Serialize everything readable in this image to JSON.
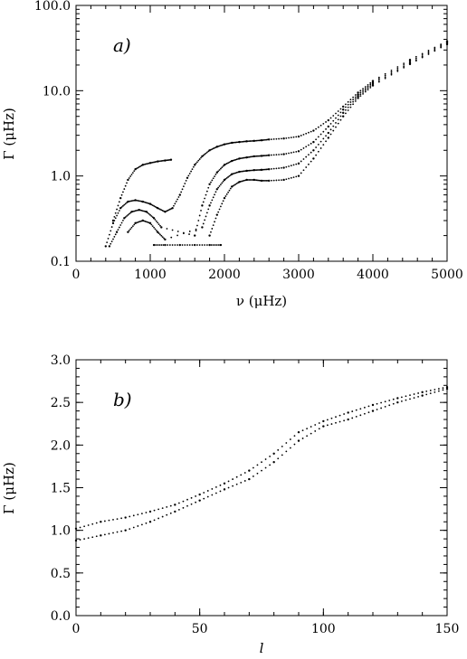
{
  "chart_data": [
    {
      "type": "scatter",
      "panel_label": "a)",
      "xlabel": "ν (μHz)",
      "ylabel": "Γ (μHz)",
      "xlim": [
        0,
        5000
      ],
      "ylim": [
        0.1,
        100
      ],
      "y_scale": "log",
      "x_ticks": [
        0,
        1000,
        2000,
        3000,
        4000,
        5000
      ],
      "x_tick_labels": [
        "0",
        "1000",
        "2000",
        "3000",
        "4000",
        "5000"
      ],
      "y_ticks": [
        0.1,
        1,
        10,
        100
      ],
      "y_tick_labels": [
        "0.1",
        "1.0",
        "10.0",
        "100.0"
      ],
      "grid": false,
      "series": [
        {
          "x": [
            500,
            600,
            700,
            800,
            900,
            1000,
            1100,
            1200,
            1280
          ],
          "y": [
            0.3,
            0.55,
            0.9,
            1.2,
            1.35,
            1.42,
            1.48,
            1.52,
            1.55
          ]
        },
        {
          "x": [
            400,
            500,
            600,
            700,
            800,
            900,
            1000,
            1100,
            1200,
            1300,
            1400,
            1500,
            1600,
            1700,
            1800,
            1900,
            2000,
            2100,
            2200,
            2300,
            2400,
            2500,
            2600,
            2800,
            3000,
            3200,
            3400,
            3600,
            3800,
            4000,
            4500,
            5000
          ],
          "y": [
            0.15,
            0.28,
            0.42,
            0.5,
            0.52,
            0.5,
            0.47,
            0.42,
            0.38,
            0.42,
            0.6,
            0.95,
            1.35,
            1.7,
            2.0,
            2.2,
            2.35,
            2.45,
            2.5,
            2.55,
            2.58,
            2.62,
            2.68,
            2.75,
            2.9,
            3.4,
            4.5,
            6.5,
            9.5,
            13,
            23,
            38
          ]
        },
        {
          "x": [
            450,
            550,
            650,
            750,
            850,
            950,
            1050,
            1150,
            1600,
            1700,
            1800,
            1900,
            2000,
            2100,
            2200,
            2300,
            2400,
            2500,
            2600,
            2800,
            3000,
            3200,
            3400,
            3600,
            3800,
            4000,
            4500,
            5000
          ],
          "y": [
            0.15,
            0.22,
            0.32,
            0.38,
            0.4,
            0.38,
            0.32,
            0.25,
            0.2,
            0.45,
            0.8,
            1.1,
            1.35,
            1.5,
            1.6,
            1.65,
            1.7,
            1.72,
            1.75,
            1.8,
            1.95,
            2.5,
            3.8,
            6.0,
            9.0,
            12.5,
            22,
            37
          ]
        },
        {
          "x": [
            700,
            800,
            900,
            1000,
            1100,
            1200,
            1700,
            1800,
            1900,
            2000,
            2100,
            2200,
            2300,
            2400,
            2500,
            2600,
            2800,
            3000,
            3200,
            3400,
            3600,
            3800,
            4000,
            4500,
            5000
          ],
          "y": [
            0.22,
            0.28,
            0.3,
            0.28,
            0.22,
            0.18,
            0.25,
            0.45,
            0.7,
            0.9,
            1.05,
            1.12,
            1.15,
            1.17,
            1.18,
            1.2,
            1.25,
            1.4,
            2.0,
            3.2,
            5.5,
            8.6,
            12,
            21,
            36
          ]
        },
        {
          "x": [
            1800,
            1900,
            2000,
            2100,
            2200,
            2300,
            2400,
            2500,
            2600,
            2800,
            3000,
            3200,
            3400,
            3600,
            3800,
            4000,
            4500,
            5000
          ],
          "y": [
            0.2,
            0.35,
            0.55,
            0.75,
            0.85,
            0.9,
            0.9,
            0.88,
            0.88,
            0.9,
            1.0,
            1.6,
            2.8,
            5.0,
            8.2,
            11.5,
            20.5,
            35
          ]
        },
        {
          "x": [
            1050,
            1200,
            1400,
            1600,
            1800,
            1950
          ],
          "y": [
            0.155,
            0.155,
            0.155,
            0.155,
            0.155,
            0.155
          ]
        }
      ]
    },
    {
      "type": "scatter",
      "panel_label": "b)",
      "xlabel": "l",
      "ylabel": "Γ (μHz)",
      "xlim": [
        0,
        150
      ],
      "ylim": [
        0,
        3
      ],
      "x_ticks": [
        0,
        50,
        100,
        150
      ],
      "x_tick_labels": [
        "0",
        "50",
        "100",
        "150"
      ],
      "y_ticks": [
        0,
        0.5,
        1,
        1.5,
        2,
        2.5,
        3
      ],
      "y_tick_labels": [
        "0.0",
        "0.5",
        "1.0",
        "1.5",
        "2.0",
        "2.5",
        "3.0"
      ],
      "grid": false,
      "series": [
        {
          "x": [
            0,
            10,
            20,
            30,
            40,
            50,
            60,
            70,
            80,
            90,
            100,
            110,
            120,
            130,
            140,
            150
          ],
          "y": [
            0.88,
            0.94,
            1.0,
            1.1,
            1.22,
            1.35,
            1.48,
            1.6,
            1.8,
            2.05,
            2.22,
            2.3,
            2.4,
            2.5,
            2.58,
            2.66
          ]
        },
        {
          "x": [
            0,
            10,
            20,
            30,
            40,
            50,
            60,
            70,
            80,
            90,
            100,
            110,
            120,
            130,
            140,
            150
          ],
          "y": [
            1.02,
            1.1,
            1.15,
            1.22,
            1.3,
            1.42,
            1.55,
            1.7,
            1.9,
            2.15,
            2.28,
            2.38,
            2.47,
            2.55,
            2.62,
            2.68
          ]
        }
      ]
    }
  ]
}
